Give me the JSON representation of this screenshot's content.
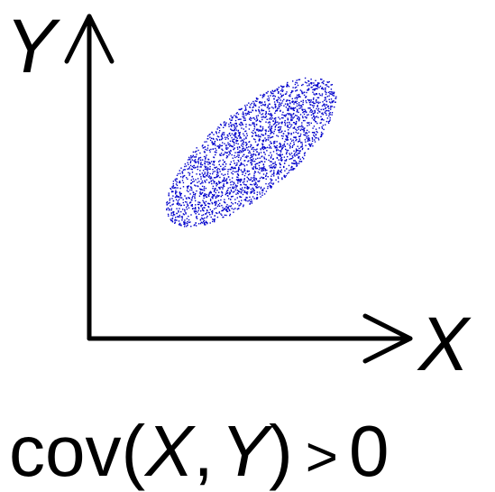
{
  "diagram": {
    "y_axis_label": "Y",
    "x_axis_label": "X",
    "caption": {
      "func": "cov(",
      "var_x": "X",
      "comma": ",",
      "var_y": "Y",
      "close": ")",
      "relation": ">",
      "value": "0"
    },
    "scatter": {
      "point_color": "#0000cc",
      "shape": "ellipse",
      "correlation": "positive",
      "point_count": 2600
    },
    "axis_color": "#000000"
  }
}
